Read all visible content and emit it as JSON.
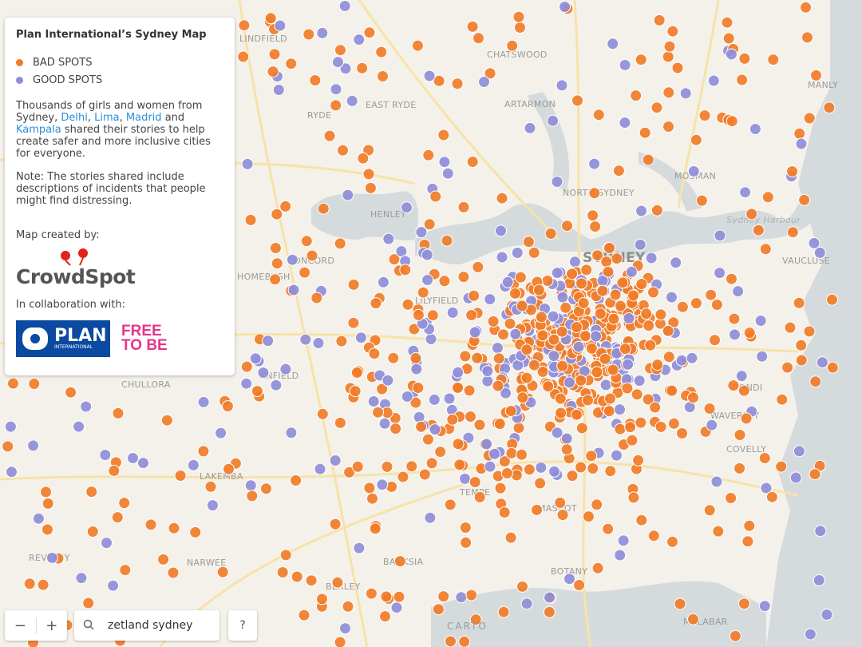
{
  "panel": {
    "title": "Plan International’s Sydney Map",
    "legend": [
      {
        "label": "BAD SPOTS",
        "color": "#f07c28"
      },
      {
        "label": "GOOD SPOTS",
        "color": "#8f8ed8"
      }
    ],
    "description": [
      {
        "text": "Thousands of girls and women from Sydney, "
      },
      {
        "link": "Delhi"
      },
      {
        "text": ", "
      },
      {
        "link": "Lima"
      },
      {
        "text": ", "
      },
      {
        "link": "Madrid"
      },
      {
        "text": " and "
      },
      {
        "link": "Kampala"
      },
      {
        "text": " shared their stories to help create safer and more inclusive cities for everyone."
      }
    ],
    "note": "Note: The stories shared include descriptions of incidents that people might find distressing.",
    "credit_label": "Map created by:",
    "credit_logo": "CrowdSpot",
    "collab_label": "In collaboration with:",
    "partner_plan": {
      "name": "PLAN",
      "sub": "INTERNATIONAL"
    },
    "partner_ftb": [
      "FREE",
      "TO BE"
    ]
  },
  "map": {
    "places": [
      "CHATSWOOD",
      "EAST RYDE",
      "ARTARMON",
      "MANLY",
      "NORTH SYDNEY",
      "SYDNEY",
      "HENLEY",
      "CONCORD",
      "HOMEBUSH",
      "ENFIELD",
      "CHULLORA",
      "BONDI",
      "WAVERLEY",
      "COVELLY",
      "VAUCLUSE",
      "LAKEMBA",
      "TEMPE",
      "MASCOT",
      "REVESBY",
      "NARWEE",
      "BANKSIA",
      "BEXLEY",
      "BOTANY",
      "MALABAR",
      "MOSMAN",
      "RYDE",
      "LINDFIELD",
      "LILYFIELD"
    ],
    "harbour_label": "Sydney Harbour"
  },
  "controls": {
    "zoom_out": "−",
    "zoom_in": "+",
    "search": "zetland sydney",
    "help": "?",
    "attribution": "CARTO"
  }
}
